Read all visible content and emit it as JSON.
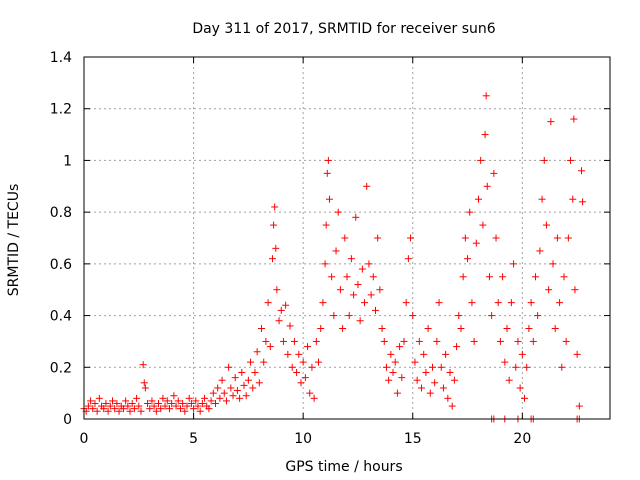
{
  "chart_data": {
    "type": "scatter",
    "title": "Day 311 of 2017, SRMTID for receiver sun6",
    "xlabel": "GPS time / hours",
    "ylabel": "SRMTID / TECUs",
    "xlim": [
      0,
      24
    ],
    "ylim": [
      0,
      1.4
    ],
    "xticks": [
      0,
      5,
      10,
      15,
      20
    ],
    "yticks": [
      0,
      0.2,
      0.4,
      0.6,
      0.8,
      1,
      1.2,
      1.4
    ],
    "ytick_labels": [
      "0",
      "0.2",
      "0.4",
      "0.6",
      "0.8",
      "1",
      "1.2",
      "1.4"
    ],
    "grid": true,
    "marker": "+",
    "color": "#ff0000",
    "series": [
      {
        "name": "SRMTID",
        "points": [
          [
            0.0,
            0.04
          ],
          [
            0.1,
            0.03
          ],
          [
            0.2,
            0.05
          ],
          [
            0.3,
            0.07
          ],
          [
            0.4,
            0.04
          ],
          [
            0.5,
            0.06
          ],
          [
            0.6,
            0.03
          ],
          [
            0.7,
            0.08
          ],
          [
            0.8,
            0.05
          ],
          [
            0.9,
            0.04
          ],
          [
            1.0,
            0.06
          ],
          [
            1.1,
            0.03
          ],
          [
            1.2,
            0.05
          ],
          [
            1.3,
            0.07
          ],
          [
            1.4,
            0.04
          ],
          [
            1.5,
            0.06
          ],
          [
            1.6,
            0.03
          ],
          [
            1.7,
            0.05
          ],
          [
            1.8,
            0.04
          ],
          [
            1.9,
            0.07
          ],
          [
            2.0,
            0.05
          ],
          [
            2.1,
            0.03
          ],
          [
            2.2,
            0.06
          ],
          [
            2.3,
            0.04
          ],
          [
            2.4,
            0.08
          ],
          [
            2.5,
            0.05
          ],
          [
            2.6,
            0.03
          ],
          [
            2.7,
            0.21
          ],
          [
            2.75,
            0.14
          ],
          [
            2.8,
            0.12
          ],
          [
            2.9,
            0.06
          ],
          [
            3.0,
            0.04
          ],
          [
            3.1,
            0.07
          ],
          [
            3.2,
            0.05
          ],
          [
            3.3,
            0.03
          ],
          [
            3.4,
            0.06
          ],
          [
            3.5,
            0.04
          ],
          [
            3.6,
            0.08
          ],
          [
            3.7,
            0.05
          ],
          [
            3.8,
            0.07
          ],
          [
            3.9,
            0.04
          ],
          [
            4.0,
            0.06
          ],
          [
            4.1,
            0.09
          ],
          [
            4.2,
            0.05
          ],
          [
            4.3,
            0.07
          ],
          [
            4.4,
            0.04
          ],
          [
            4.5,
            0.06
          ],
          [
            4.6,
            0.03
          ],
          [
            4.7,
            0.05
          ],
          [
            4.8,
            0.08
          ],
          [
            4.9,
            0.06
          ],
          [
            5.0,
            0.04
          ],
          [
            5.1,
            0.07
          ],
          [
            5.2,
            0.05
          ],
          [
            5.3,
            0.03
          ],
          [
            5.4,
            0.06
          ],
          [
            5.5,
            0.08
          ],
          [
            5.6,
            0.05
          ],
          [
            5.7,
            0.04
          ],
          [
            5.8,
            0.07
          ],
          [
            5.9,
            0.1
          ],
          [
            6.0,
            0.06
          ],
          [
            6.1,
            0.12
          ],
          [
            6.2,
            0.08
          ],
          [
            6.3,
            0.15
          ],
          [
            6.4,
            0.1
          ],
          [
            6.5,
            0.07
          ],
          [
            6.6,
            0.2
          ],
          [
            6.7,
            0.12
          ],
          [
            6.8,
            0.09
          ],
          [
            6.9,
            0.16
          ],
          [
            7.0,
            0.11
          ],
          [
            7.1,
            0.08
          ],
          [
            7.2,
            0.18
          ],
          [
            7.3,
            0.13
          ],
          [
            7.4,
            0.09
          ],
          [
            7.5,
            0.15
          ],
          [
            7.6,
            0.22
          ],
          [
            7.7,
            0.12
          ],
          [
            7.8,
            0.18
          ],
          [
            7.9,
            0.26
          ],
          [
            8.0,
            0.14
          ],
          [
            8.1,
            0.35
          ],
          [
            8.2,
            0.22
          ],
          [
            8.3,
            0.3
          ],
          [
            8.4,
            0.45
          ],
          [
            8.5,
            0.28
          ],
          [
            8.6,
            0.62
          ],
          [
            8.65,
            0.75
          ],
          [
            8.7,
            0.82
          ],
          [
            8.75,
            0.66
          ],
          [
            8.8,
            0.5
          ],
          [
            8.9,
            0.38
          ],
          [
            9.0,
            0.42
          ],
          [
            9.1,
            0.3
          ],
          [
            9.2,
            0.44
          ],
          [
            9.3,
            0.25
          ],
          [
            9.4,
            0.36
          ],
          [
            9.5,
            0.2
          ],
          [
            9.6,
            0.3
          ],
          [
            9.7,
            0.18
          ],
          [
            9.8,
            0.25
          ],
          [
            9.9,
            0.14
          ],
          [
            10.0,
            0.22
          ],
          [
            10.1,
            0.16
          ],
          [
            10.2,
            0.28
          ],
          [
            10.3,
            0.1
          ],
          [
            10.4,
            0.2
          ],
          [
            10.5,
            0.08
          ],
          [
            10.6,
            0.3
          ],
          [
            10.7,
            0.22
          ],
          [
            10.8,
            0.35
          ],
          [
            10.9,
            0.45
          ],
          [
            11.0,
            0.6
          ],
          [
            11.05,
            0.75
          ],
          [
            11.1,
            0.95
          ],
          [
            11.15,
            1.0
          ],
          [
            11.2,
            0.85
          ],
          [
            11.3,
            0.55
          ],
          [
            11.4,
            0.4
          ],
          [
            11.5,
            0.65
          ],
          [
            11.6,
            0.8
          ],
          [
            11.7,
            0.5
          ],
          [
            11.8,
            0.35
          ],
          [
            11.9,
            0.7
          ],
          [
            12.0,
            0.55
          ],
          [
            12.1,
            0.4
          ],
          [
            12.2,
            0.62
          ],
          [
            12.3,
            0.48
          ],
          [
            12.4,
            0.78
          ],
          [
            12.5,
            0.52
          ],
          [
            12.6,
            0.38
          ],
          [
            12.7,
            0.58
          ],
          [
            12.8,
            0.45
          ],
          [
            12.9,
            0.9
          ],
          [
            13.0,
            0.6
          ],
          [
            13.1,
            0.48
          ],
          [
            13.2,
            0.55
          ],
          [
            13.3,
            0.42
          ],
          [
            13.4,
            0.7
          ],
          [
            13.5,
            0.5
          ],
          [
            13.6,
            0.35
          ],
          [
            13.7,
            0.3
          ],
          [
            13.8,
            0.2
          ],
          [
            13.9,
            0.15
          ],
          [
            14.0,
            0.25
          ],
          [
            14.1,
            0.18
          ],
          [
            14.2,
            0.22
          ],
          [
            14.3,
            0.1
          ],
          [
            14.4,
            0.28
          ],
          [
            14.5,
            0.16
          ],
          [
            14.6,
            0.3
          ],
          [
            14.7,
            0.45
          ],
          [
            14.8,
            0.62
          ],
          [
            14.9,
            0.7
          ],
          [
            15.0,
            0.4
          ],
          [
            15.1,
            0.22
          ],
          [
            15.2,
            0.15
          ],
          [
            15.3,
            0.3
          ],
          [
            15.4,
            0.12
          ],
          [
            15.5,
            0.25
          ],
          [
            15.6,
            0.18
          ],
          [
            15.7,
            0.35
          ],
          [
            15.8,
            0.1
          ],
          [
            15.9,
            0.2
          ],
          [
            16.0,
            0.14
          ],
          [
            16.1,
            0.3
          ],
          [
            16.2,
            0.45
          ],
          [
            16.3,
            0.2
          ],
          [
            16.4,
            0.12
          ],
          [
            16.5,
            0.25
          ],
          [
            16.6,
            0.08
          ],
          [
            16.7,
            0.18
          ],
          [
            16.8,
            0.05
          ],
          [
            16.9,
            0.15
          ],
          [
            17.0,
            0.28
          ],
          [
            17.1,
            0.4
          ],
          [
            17.2,
            0.35
          ],
          [
            17.3,
            0.55
          ],
          [
            17.4,
            0.7
          ],
          [
            17.5,
            0.62
          ],
          [
            17.6,
            0.8
          ],
          [
            17.7,
            0.45
          ],
          [
            17.8,
            0.3
          ],
          [
            17.9,
            0.68
          ],
          [
            18.0,
            0.85
          ],
          [
            18.1,
            1.0
          ],
          [
            18.2,
            0.75
          ],
          [
            18.3,
            1.1
          ],
          [
            18.35,
            1.25
          ],
          [
            18.4,
            0.9
          ],
          [
            18.5,
            0.55
          ],
          [
            18.6,
            0.4
          ],
          [
            18.7,
            0.95
          ],
          [
            18.8,
            0.7
          ],
          [
            18.9,
            0.45
          ],
          [
            19.0,
            0.3
          ],
          [
            19.1,
            0.55
          ],
          [
            19.2,
            0.22
          ],
          [
            19.3,
            0.35
          ],
          [
            19.4,
            0.15
          ],
          [
            19.5,
            0.45
          ],
          [
            19.6,
            0.6
          ],
          [
            19.7,
            0.2
          ],
          [
            19.8,
            0.3
          ],
          [
            19.9,
            0.12
          ],
          [
            20.0,
            0.25
          ],
          [
            20.1,
            0.08
          ],
          [
            20.2,
            0.2
          ],
          [
            20.3,
            0.35
          ],
          [
            20.4,
            0.45
          ],
          [
            20.5,
            0.3
          ],
          [
            20.6,
            0.55
          ],
          [
            20.7,
            0.4
          ],
          [
            20.8,
            0.65
          ],
          [
            20.9,
            0.85
          ],
          [
            21.0,
            1.0
          ],
          [
            21.1,
            0.75
          ],
          [
            21.2,
            0.5
          ],
          [
            21.3,
            1.15
          ],
          [
            21.4,
            0.6
          ],
          [
            21.5,
            0.35
          ],
          [
            21.6,
            0.7
          ],
          [
            21.7,
            0.45
          ],
          [
            21.8,
            0.2
          ],
          [
            21.9,
            0.55
          ],
          [
            22.0,
            0.3
          ],
          [
            22.1,
            0.7
          ],
          [
            22.2,
            1.0
          ],
          [
            22.3,
            0.85
          ],
          [
            22.35,
            1.16
          ],
          [
            22.4,
            0.5
          ],
          [
            22.5,
            0.25
          ],
          [
            22.6,
            0.05
          ],
          [
            22.7,
            0.96
          ],
          [
            22.75,
            0.84
          ],
          [
            18.6,
            0.0
          ],
          [
            18.7,
            0.0
          ],
          [
            19.2,
            0.0
          ],
          [
            19.8,
            0.0
          ],
          [
            20.4,
            0.0
          ],
          [
            20.5,
            0.0
          ],
          [
            22.5,
            0.0
          ],
          [
            22.6,
            0.0
          ]
        ]
      }
    ]
  }
}
